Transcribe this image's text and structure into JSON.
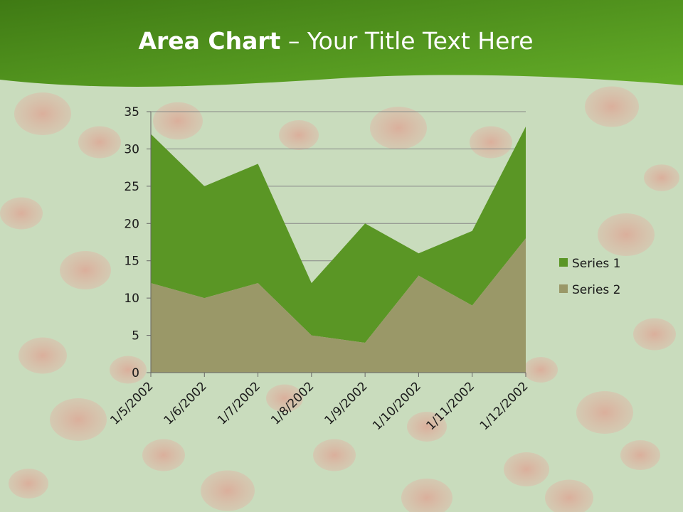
{
  "slide": {
    "title_bold": "Area Chart",
    "title_rest": " – Your Title Text Here"
  },
  "colors": {
    "header_green": "#4f8f1e",
    "series1": "#5a9625",
    "series2": "#9a9868",
    "axis": "#666666",
    "grid": "#888888"
  },
  "chart_data": {
    "type": "area",
    "stacked": true,
    "categories": [
      "1/5/2002",
      "1/6/2002",
      "1/7/2002",
      "1/8/2002",
      "1/9/2002",
      "1/10/2002",
      "1/11/2002",
      "1/12/2002"
    ],
    "series": [
      {
        "name": "Series 1",
        "values": [
          20,
          15,
          16,
          7,
          16,
          3,
          10,
          15
        ]
      },
      {
        "name": "Series 2",
        "values": [
          12,
          10,
          12,
          5,
          4,
          13,
          9,
          18
        ]
      }
    ],
    "ylim": [
      0,
      35
    ],
    "yticks": [
      0,
      5,
      10,
      15,
      20,
      25,
      30,
      35
    ],
    "grid": true,
    "legend": "right"
  }
}
